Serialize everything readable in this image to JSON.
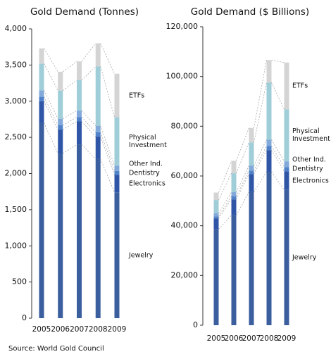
{
  "chart_data": [
    {
      "type": "stacked-bar",
      "title": "Gold Demand (Tonnes)",
      "categories": [
        "2005",
        "2006",
        "2007",
        "2008",
        "2009"
      ],
      "ylim": [
        0,
        4000
      ],
      "yticks": [
        0,
        500,
        {
          "value": 1000,
          "label": "1,000"
        },
        {
          "value": 1500,
          "label": "1,500"
        },
        {
          "value": 2000,
          "label": "2,000"
        },
        {
          "value": 2500,
          "label": "2,500"
        },
        {
          "value": 3000,
          "label": "3,000"
        },
        {
          "value": 3500,
          "label": "3,500"
        },
        {
          "value": 4000,
          "label": "4,000"
        }
      ],
      "series": [
        {
          "name": "Jewelry",
          "color": "#3a5e9e",
          "values": [
            2700,
            2277,
            2400,
            2200,
            1740
          ]
        },
        {
          "name": "Electronics",
          "color": "#2f56a6",
          "values": [
            300,
            330,
            320,
            310,
            240
          ]
        },
        {
          "name": "Dentistry",
          "color": "#4f82c9",
          "values": [
            60,
            60,
            60,
            60,
            55
          ]
        },
        {
          "name": "Other Ind.",
          "color": "#82a9da",
          "values": [
            90,
            90,
            90,
            90,
            75
          ]
        },
        {
          "name": "Physical Investment",
          "color": "#9fcdd8",
          "values": [
            370,
            390,
            420,
            820,
            670
          ]
        },
        {
          "name": "ETFs",
          "color": "#d4d4d4",
          "values": [
            210,
            260,
            260,
            320,
            600
          ]
        }
      ]
    },
    {
      "type": "stacked-bar",
      "title": "Gold Demand ($ Billions)",
      "categories": [
        "2005",
        "2006",
        "2007",
        "2008",
        "2009"
      ],
      "ylim": [
        0,
        120000
      ],
      "yticks": [
        0,
        {
          "value": 20000,
          "label": "20,000"
        },
        {
          "value": 40000,
          "label": "40,000"
        },
        {
          "value": 60000,
          "label": "60,000"
        },
        {
          "value": 80000,
          "label": "80,000"
        },
        {
          "value": 100000,
          "label": "100,000"
        },
        {
          "value": 120000,
          "label": "120,000"
        }
      ],
      "series": [
        {
          "name": "Jewelry",
          "color": "#3a5e9e",
          "values": [
            38600,
            44200,
            53600,
            61700,
            54400
          ]
        },
        {
          "name": "Electronics",
          "color": "#2f56a6",
          "values": [
            4300,
            6400,
            7200,
            8700,
            7500
          ]
        },
        {
          "name": "Dentistry",
          "color": "#4f82c9",
          "values": [
            860,
            1200,
            1300,
            1700,
            1700
          ]
        },
        {
          "name": "Other Ind.",
          "color": "#82a9da",
          "values": [
            1290,
            1700,
            2000,
            2500,
            2300
          ]
        },
        {
          "name": "Physical Investment",
          "color": "#9fcdd8",
          "values": [
            5290,
            7600,
            9400,
            23000,
            20900
          ]
        },
        {
          "name": "ETFs",
          "color": "#d4d4d4",
          "values": [
            3000,
            5000,
            5800,
            9000,
            18800
          ]
        }
      ]
    }
  ],
  "source": "Source: World Gold Council"
}
